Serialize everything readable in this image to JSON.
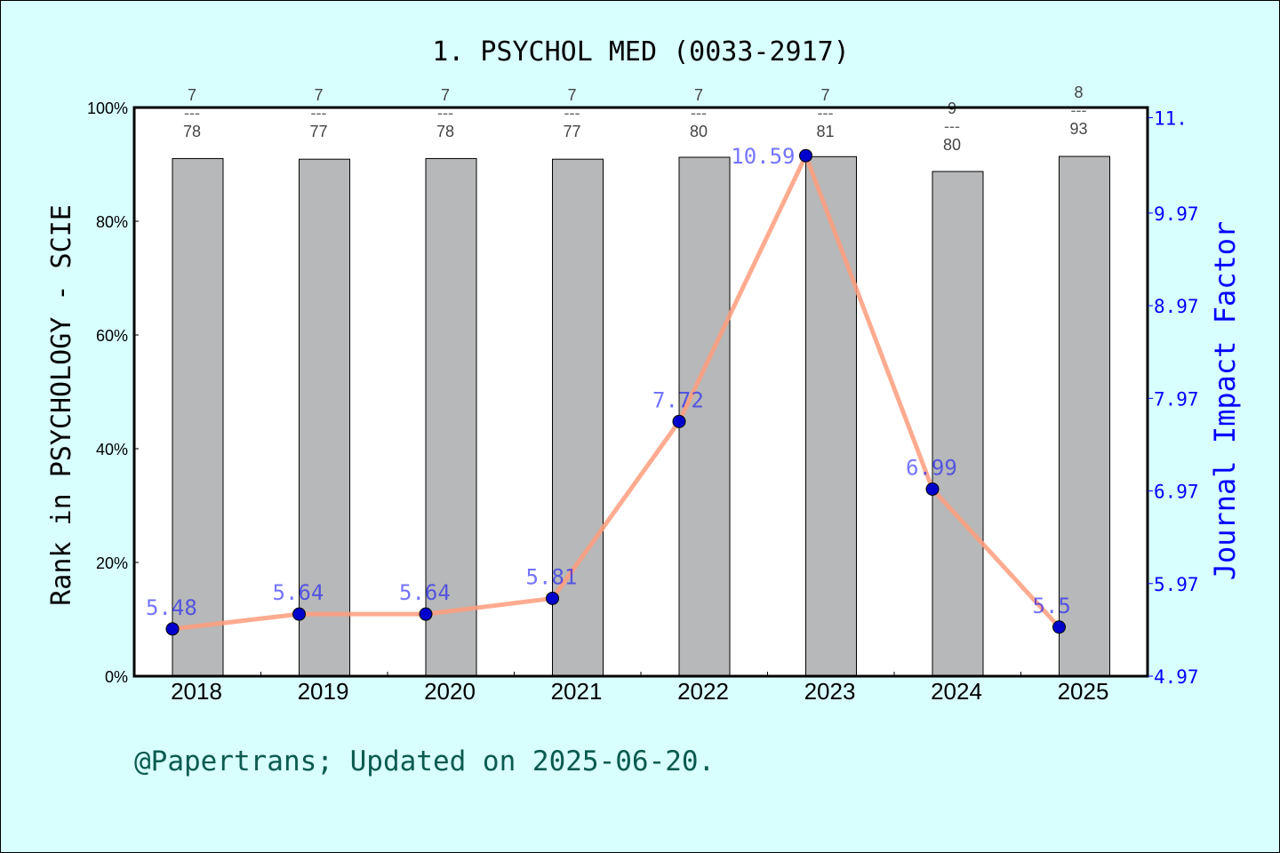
{
  "chart_data": {
    "type": "bar+line",
    "title": "1. PSYCHOL MED (0033-2917)",
    "ylabel_left": "Rank in PSYCHOLOGY - SCIE",
    "ylabel_right": "Journal Impact Factor",
    "categories": [
      "2018",
      "2019",
      "2020",
      "2021",
      "2022",
      "2023",
      "2024",
      "2025"
    ],
    "ranks": [
      7,
      7,
      7,
      7,
      7,
      7,
      9,
      8
    ],
    "totals": [
      78,
      77,
      78,
      77,
      80,
      81,
      80,
      93
    ],
    "bar_percentile": [
      91.0,
      90.9,
      91.0,
      90.9,
      91.3,
      91.4,
      88.8,
      91.4
    ],
    "impact_factor": [
      5.48,
      5.64,
      5.64,
      5.81,
      7.72,
      10.59,
      6.99,
      5.5
    ],
    "impact_factor_labels": [
      "5.48",
      "5.64",
      "5.64",
      "5.81",
      "7.72",
      "10.59",
      "6.99",
      "5.5"
    ],
    "left_ylim": [
      0,
      100
    ],
    "left_ticks": [
      "0%",
      "20%",
      "40%",
      "60%",
      "80%",
      "100%"
    ],
    "right_ticks": [
      "4.97",
      "5.97",
      "6.97",
      "7.97",
      "8.97",
      "9.97",
      "11."
    ],
    "right_tick_values": [
      4.97,
      5.97,
      6.97,
      7.97,
      8.97,
      9.97,
      11.0
    ],
    "right_ylim": [
      4.97,
      11.11
    ],
    "colors": {
      "bar": "#b7b8b9",
      "line": "#ff9c7c",
      "point": "#0000cc",
      "right_axis": "#0000ff",
      "background": "#d8fefe"
    }
  },
  "footer": "@Papertrans; Updated on 2025-06-20."
}
